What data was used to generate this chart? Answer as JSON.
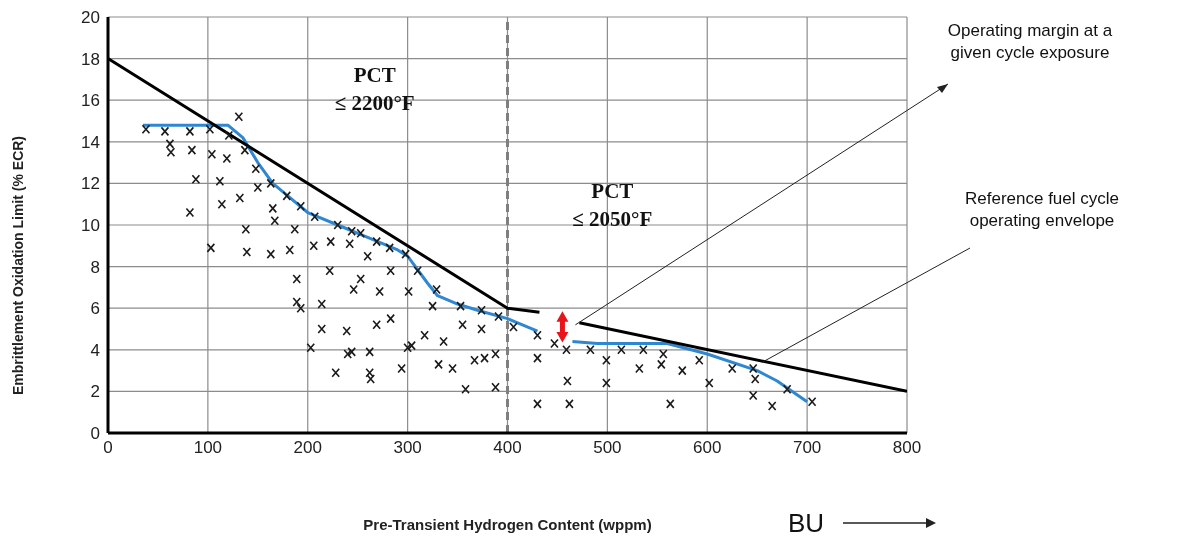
{
  "chart_data": {
    "type": "scatter",
    "xlabel": "Pre-Transient Hydrogen Content (wppm)",
    "ylabel": "Embrittlement Oxidation Limit (% ECR)",
    "xlim": [
      0,
      800
    ],
    "xticks": [
      0,
      100,
      200,
      300,
      400,
      500,
      600,
      700,
      800
    ],
    "ylim": [
      0,
      20
    ],
    "yticks": [
      0,
      2,
      4,
      6,
      8,
      10,
      12,
      14,
      16,
      18,
      20
    ],
    "grid": true,
    "ref_lines": [
      {
        "axis": "x",
        "value": 400,
        "color": "#7f7f7f",
        "line_style": "dashed"
      }
    ],
    "annotations": [
      "PCT ≤ 2200°F",
      "PCT ≤ 2050°F",
      {
        "text": "Operating margin at a given cycle exposure",
        "x": 468,
        "y": 5.2
      },
      {
        "text": "Reference fuel cycle operating envelope",
        "x": 655,
        "y": 3.4
      },
      "BU"
    ],
    "series": [
      {
        "marker": "cross",
        "color": "#1a1a1a",
        "x": [
          38,
          57,
          62,
          63,
          82,
          84,
          88,
          82,
          102,
          104,
          112,
          114,
          103,
          119,
          121,
          131,
          137,
          132,
          148,
          150,
          163,
          165,
          167,
          138,
          139,
          163,
          179,
          193,
          207,
          206,
          187,
          182,
          189,
          189,
          193,
          203,
          223,
          230,
          242,
          244,
          253,
          260,
          269,
          282,
          298,
          222,
          253,
          246,
          272,
          283,
          310,
          301,
          329,
          214,
          325,
          353,
          374,
          391,
          214,
          239,
          269,
          283,
          317,
          336,
          355,
          374,
          240,
          244,
          262,
          300,
          304,
          228,
          262,
          263,
          294,
          331,
          345,
          367,
          377,
          388,
          358,
          388,
          406,
          430,
          447,
          459,
          430,
          483,
          499,
          514,
          536,
          556,
          532,
          554,
          575,
          592,
          460,
          499,
          602,
          430,
          462,
          563,
          625,
          646,
          648,
          646,
          665,
          680,
          705
        ],
        "values": [
          14.6,
          14.5,
          13.9,
          13.5,
          14.5,
          13.6,
          12.2,
          10.6,
          14.6,
          13.4,
          12.1,
          11.0,
          8.9,
          13.2,
          14.3,
          15.2,
          13.6,
          11.3,
          12.7,
          11.8,
          12.0,
          10.8,
          10.2,
          9.8,
          8.7,
          8.6,
          11.4,
          10.9,
          10.4,
          9.0,
          9.8,
          8.8,
          7.4,
          6.3,
          6.0,
          4.1,
          9.2,
          10.0,
          9.1,
          9.7,
          9.6,
          8.5,
          9.2,
          8.9,
          8.6,
          7.8,
          7.4,
          6.9,
          6.8,
          7.8,
          7.8,
          6.8,
          6.9,
          6.2,
          6.1,
          6.1,
          5.9,
          5.6,
          5.0,
          4.9,
          5.2,
          5.5,
          4.7,
          4.4,
          5.2,
          5.0,
          3.8,
          3.9,
          3.9,
          4.1,
          4.2,
          2.9,
          2.9,
          2.6,
          3.1,
          3.3,
          3.1,
          3.5,
          3.6,
          3.8,
          2.1,
          2.2,
          5.1,
          4.7,
          4.3,
          4.0,
          3.6,
          4.0,
          3.5,
          4.0,
          4.0,
          3.8,
          3.1,
          3.3,
          3.0,
          3.5,
          2.5,
          2.4,
          2.4,
          1.4,
          1.4,
          1.4,
          3.1,
          3.1,
          2.6,
          1.8,
          1.3,
          2.1,
          1.5
        ]
      },
      {
        "type": "line",
        "color": "#2f86d1",
        "x": [
          35,
          120,
          135,
          150,
          165,
          180,
          200,
          230,
          260,
          290,
          300,
          320,
          330,
          350,
          370,
          400,
          430,
          445,
          465,
          490,
          560,
          600,
          650,
          670,
          700
        ],
        "values": [
          14.8,
          14.8,
          14.2,
          13.0,
          12.0,
          11.4,
          10.6,
          10.0,
          9.4,
          8.8,
          8.5,
          7.2,
          6.6,
          6.2,
          5.9,
          5.5,
          4.9,
          null,
          4.4,
          4.3,
          4.3,
          3.8,
          3.0,
          2.5,
          1.5
        ]
      },
      {
        "type": "line",
        "color": "#000000",
        "x": [
          0,
          400,
          432,
          450,
          472,
          800
        ],
        "values": [
          18,
          6,
          5.8,
          null,
          5.3,
          2
        ]
      }
    ]
  }
}
